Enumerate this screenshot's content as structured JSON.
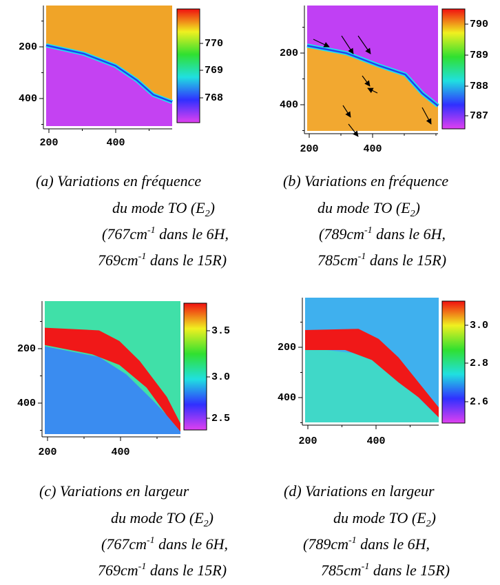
{
  "panels": [
    {
      "id": "a",
      "yticks": [
        "200",
        "400"
      ],
      "xticks": [
        "200",
        "400"
      ],
      "cbar": [
        "770",
        "769",
        "768"
      ],
      "caption": [
        [
          "(a) Variations en fréquence"
        ],
        [
          "du mode TO (E",
          "2",
          ")"
        ],
        [
          "(767cm",
          "-1",
          " dans le 6H,"
        ],
        [
          "769cm",
          "-1",
          " dans le 15R)"
        ]
      ]
    },
    {
      "id": "b",
      "yticks": [
        "200",
        "400"
      ],
      "xticks": [
        "200",
        "400"
      ],
      "cbar": [
        "790",
        "789",
        "788",
        "787"
      ],
      "caption": [
        [
          "(b) Variations en fréquence"
        ],
        [
          "du mode TO (E",
          "2",
          ")"
        ],
        [
          "(789cm",
          "-1",
          " dans le 6H,"
        ],
        [
          "785cm",
          "-1",
          " dans le 15R)"
        ]
      ]
    },
    {
      "id": "c",
      "yticks": [
        "200",
        "400"
      ],
      "xticks": [
        "200",
        "400"
      ],
      "cbar": [
        "3.5",
        "3.0",
        "2.5"
      ],
      "caption": [
        [
          "(c) Variations en largeur"
        ],
        [
          "du mode TO (E",
          "2",
          ")"
        ],
        [
          "(767cm",
          "-1",
          " dans le 6H,"
        ],
        [
          "769cm",
          "-1",
          " dans le 15R)"
        ]
      ]
    },
    {
      "id": "d",
      "yticks": [
        "200",
        "400"
      ],
      "xticks": [
        "200",
        "400"
      ],
      "cbar": [
        "3.0",
        "2.8",
        "2.6"
      ],
      "caption": [
        [
          "(d) Variations en largeur"
        ],
        [
          "du mode TO (E",
          "2",
          ")"
        ],
        [
          "(789cm",
          "-1",
          " dans le 6H,"
        ],
        [
          "785cm",
          "-1",
          " dans le 15R)"
        ]
      ]
    }
  ]
}
